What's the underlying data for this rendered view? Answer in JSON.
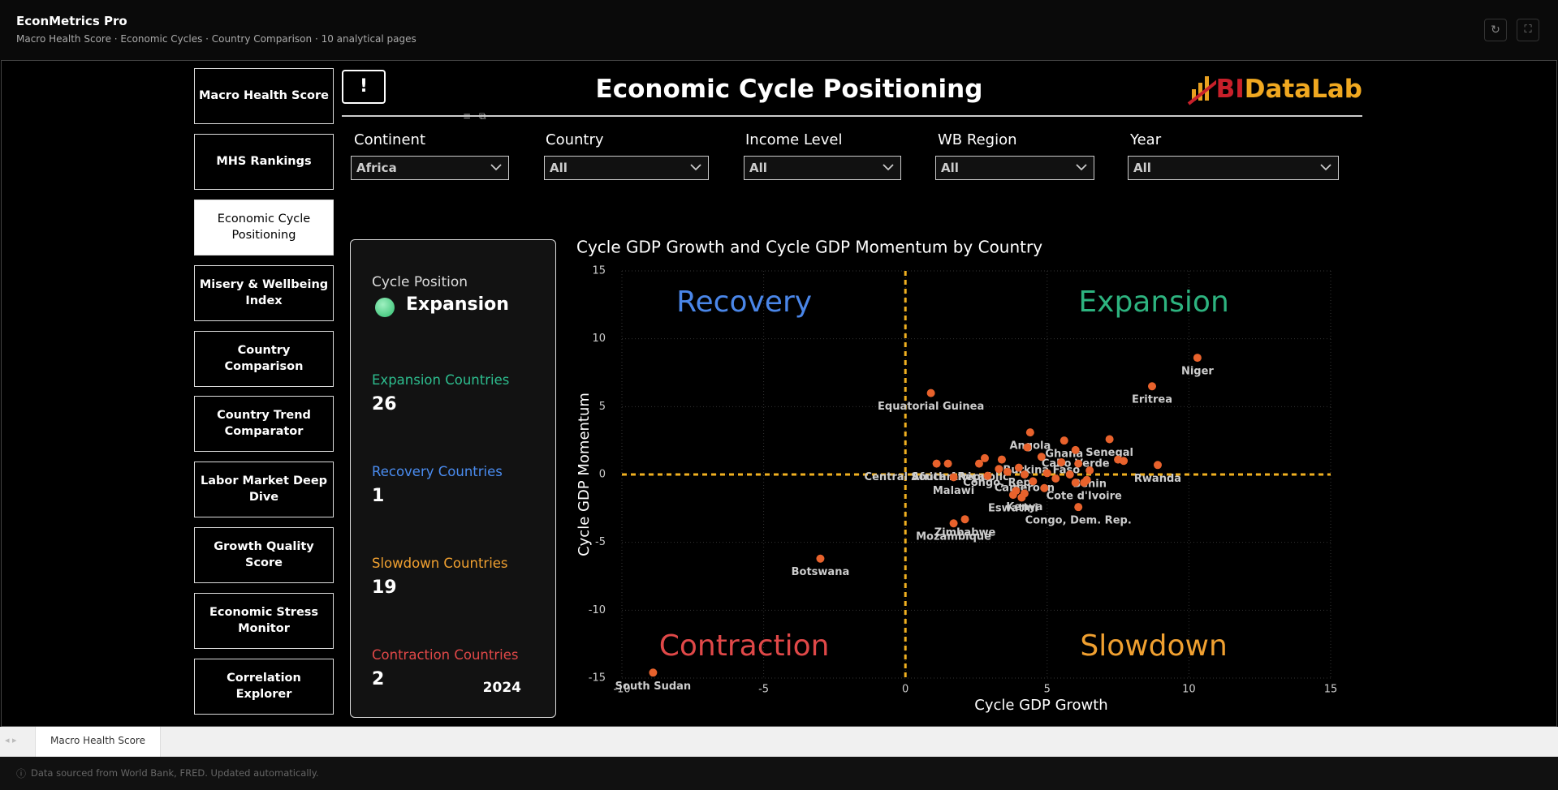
{
  "app_header": {
    "title": "EconMetrics Pro",
    "subtitle": "Macro Health Score · Economic Cycles · Country Comparison · 10 analytical pages"
  },
  "nav": {
    "items": [
      "Macro Health Score",
      "MHS Rankings",
      "Economic Cycle Positioning",
      "Misery & Wellbeing Index",
      "Country Comparison",
      "Country Trend Comparator",
      "Labor Market Deep Dive",
      "Growth Quality Score",
      "Economic Stress Monitor",
      "Correlation Explorer"
    ],
    "active_index": 2
  },
  "alert_button": "!",
  "page_title": "Economic Cycle Positioning",
  "logo": {
    "prefix": "BI",
    "text": "DataLab"
  },
  "filters": [
    {
      "label": "Continent",
      "value": "Africa"
    },
    {
      "label": "Country",
      "value": "All"
    },
    {
      "label": "Income Level",
      "value": "All"
    },
    {
      "label": "WB Region",
      "value": "All"
    },
    {
      "label": "Year",
      "value": "All"
    }
  ],
  "kpi": {
    "position_label": "Cycle Position",
    "position": "Expansion",
    "counts": [
      {
        "label": "Expansion Countries",
        "value": 26,
        "color": "#2dbd8e"
      },
      {
        "label": "Recovery Countries",
        "value": 1,
        "color": "#4a8cf0"
      },
      {
        "label": "Slowdown Countries",
        "value": 19,
        "color": "#f0a030"
      },
      {
        "label": "Contraction Countries",
        "value": 2,
        "color": "#e04848"
      }
    ],
    "year": 2024
  },
  "chart_data": {
    "type": "scatter",
    "title": "Cycle GDP Growth and Cycle GDP Momentum by Country",
    "xlabel": "Cycle GDP Growth",
    "ylabel": "Cycle GDP Momentum",
    "color": "#e8622c",
    "x": [
      10.3,
      8.7,
      0.9,
      4.4,
      5.6,
      7.2,
      6.0,
      4.8,
      8.9,
      6.5,
      1.1,
      1.5,
      1.7,
      3.3,
      4.2,
      6.3,
      3.8,
      4.2,
      6.1,
      2.1,
      1.7,
      -3.0,
      -8.9,
      2.6,
      2.8,
      3.4,
      3.6,
      4.0,
      4.5,
      5.0,
      5.3,
      5.5,
      5.8,
      6.1,
      6.4,
      7.5,
      7.7,
      4.9,
      4.1,
      3.9,
      4.3,
      6.0,
      2.9
    ],
    "values": [
      8.6,
      6.5,
      6.0,
      3.1,
      2.5,
      2.6,
      1.8,
      1.3,
      0.7,
      0.3,
      0.8,
      0.8,
      -0.2,
      0.4,
      0.0,
      -0.6,
      -1.5,
      -1.4,
      -2.4,
      -3.3,
      -3.6,
      -6.2,
      -14.6,
      0.8,
      1.2,
      1.1,
      0.2,
      0.5,
      -0.5,
      0.1,
      -0.3,
      0.9,
      0.0,
      0.8,
      -0.4,
      1.1,
      1.0,
      -1.0,
      -1.7,
      -1.2,
      2.0,
      -0.6,
      -0.1
    ],
    "point_labels": [
      "Niger",
      "Eritrea",
      "Equatorial Guinea",
      "Angola",
      "Ghana",
      "Senegal",
      "Cabo Verde",
      "Burkina Faso",
      "Rwanda",
      "Benin",
      "Central African Republic",
      "South Africa",
      "Malawi",
      "Congo, Rep.",
      "Cameroon",
      "Cote d'Ivoire",
      "Eswatini",
      "Kenya",
      "Congo, Dem. Rep.",
      "Zimbabwe",
      "Mozambique",
      "Botswana",
      "South Sudan",
      null,
      null,
      null,
      null,
      null,
      null,
      null,
      null,
      null,
      null,
      null,
      null,
      null,
      null,
      null,
      null,
      null,
      null,
      null,
      null
    ],
    "xlim": [
      -10,
      15
    ],
    "ylim": [
      -15,
      15
    ],
    "xticks": [
      -10,
      -5,
      0,
      5,
      10,
      15
    ],
    "yticks": [
      -15,
      -10,
      -5,
      0,
      5,
      10,
      15
    ],
    "grid": true,
    "reference_lines": {
      "x": 0,
      "y": 0,
      "color": "#f0b020"
    },
    "annotations": [
      {
        "text": "Recovery",
        "color": "#4a86e8",
        "corner": "top-left"
      },
      {
        "text": "Expansion",
        "color": "#2db37f",
        "corner": "top-right"
      },
      {
        "text": "Contraction",
        "color": "#e04848",
        "corner": "bottom-left"
      },
      {
        "text": "Slowdown",
        "color": "#f0a030",
        "corner": "bottom-right"
      }
    ]
  },
  "tabs": [
    "Macro Health Score"
  ],
  "footer": "Data sourced from World Bank, FRED. Updated automatically."
}
